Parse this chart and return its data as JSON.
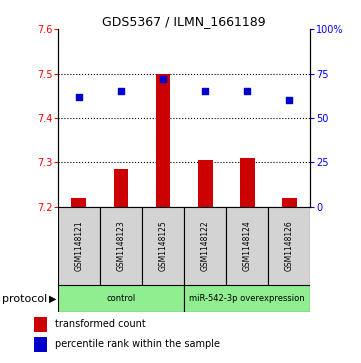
{
  "title": "GDS5367 / ILMN_1661189",
  "samples": [
    "GSM1148121",
    "GSM1148123",
    "GSM1148125",
    "GSM1148122",
    "GSM1148124",
    "GSM1148126"
  ],
  "transformed_counts": [
    7.22,
    7.285,
    7.5,
    7.305,
    7.31,
    7.22
  ],
  "percentile_ranks": [
    62,
    65,
    72,
    65,
    65,
    60
  ],
  "bar_baseline": 7.2,
  "ylim_left": [
    7.2,
    7.6
  ],
  "ylim_right": [
    0,
    100
  ],
  "yticks_left": [
    7.2,
    7.3,
    7.4,
    7.5,
    7.6
  ],
  "yticks_right": [
    0,
    25,
    50,
    75,
    100
  ],
  "bar_color": "#cc0000",
  "dot_color": "#0000cc",
  "groups": [
    {
      "label": "control",
      "start": 0,
      "end": 3
    },
    {
      "label": "miR-542-3p overexpression",
      "start": 3,
      "end": 6
    }
  ],
  "sample_box_color": "#d3d3d3",
  "group_box_color": "#90ee90",
  "protocol_label": "protocol",
  "legend_bar_label": "transformed count",
  "legend_dot_label": "percentile rank within the sample",
  "title_fontsize": 9,
  "tick_fontsize": 7,
  "sample_fontsize": 5.5,
  "group_fontsize": 6,
  "legend_fontsize": 7,
  "protocol_fontsize": 8
}
